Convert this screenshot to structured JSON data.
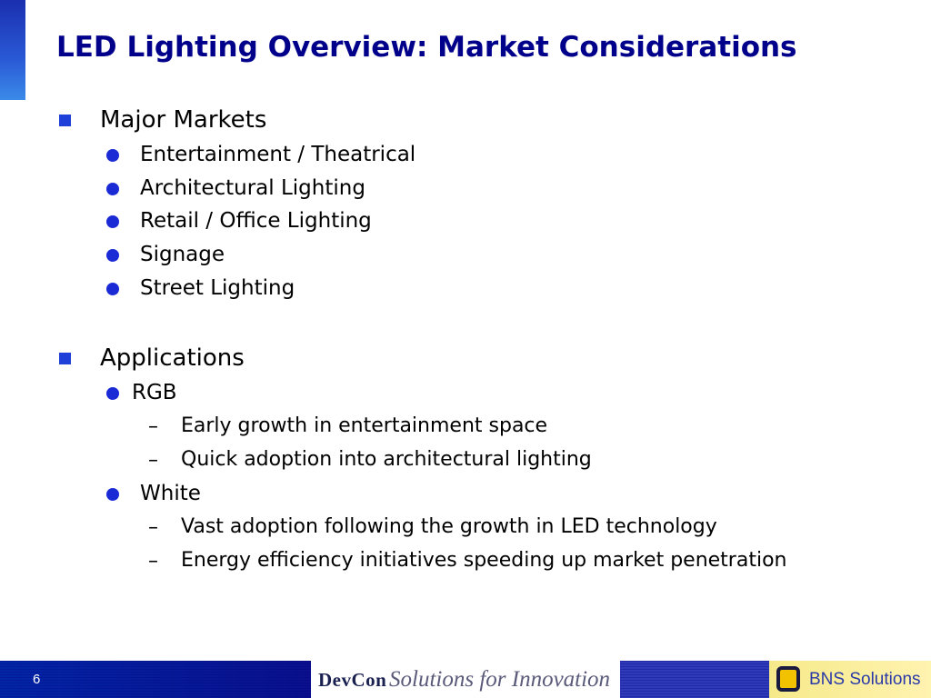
{
  "slide": {
    "title": "LED Lighting Overview: Market Considerations"
  },
  "sections": [
    {
      "label": "Major Markets",
      "items": [
        {
          "label": "Entertainment / Theatrical"
        },
        {
          "label": "Architectural Lighting"
        },
        {
          "label": "Retail / Office Lighting"
        },
        {
          "label": "Signage"
        },
        {
          "label": "Street Lighting"
        }
      ]
    },
    {
      "label": "Applications",
      "items": [
        {
          "label": "RGB",
          "subitems": [
            "Early growth in entertainment space",
            "Quick adoption into architectural lighting"
          ]
        },
        {
          "label": "White",
          "subitems": [
            "Vast adoption following the growth in LED technology",
            "Energy efficiency initiatives speeding up market penetration"
          ]
        }
      ]
    }
  ],
  "bullets": {
    "dash": "–"
  },
  "footer": {
    "page_number": "6",
    "company_logo": "DevCon",
    "tagline": "Solutions for Innovation",
    "partner_logo": "BNS Solutions"
  },
  "colors": {
    "title": "#00008b",
    "square_bullet": "#1e3fd8",
    "dot_bullet": "#1a2bd6"
  },
  "icons": {
    "level1": "square-bullet-icon",
    "level2": "circle-bullet-icon",
    "level3": "dash-bullet-icon",
    "partner": "bns-logo-icon"
  }
}
